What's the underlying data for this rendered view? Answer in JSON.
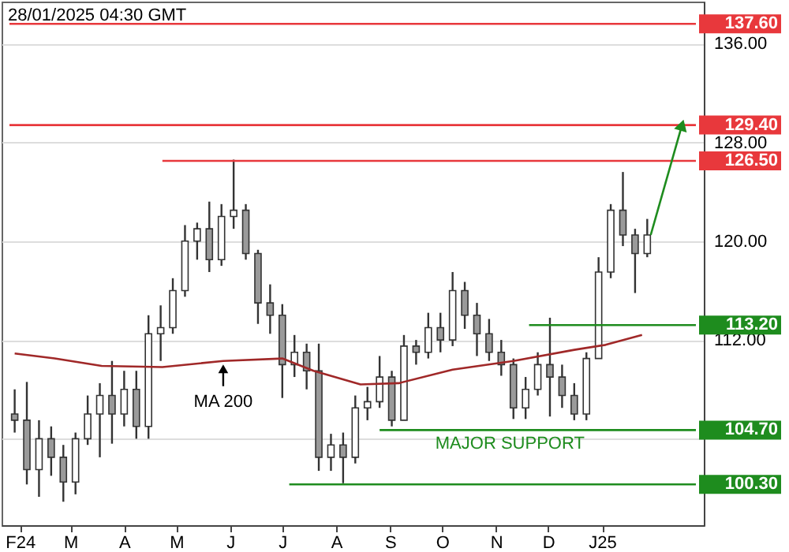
{
  "chart_data": {
    "type": "candlestick",
    "annotations": [
      "28/01/2025 04:30 GMT",
      {
        "text": "MA 200",
        "x": "2024-05-28",
        "y": 110.3
      },
      {
        "text": "MAJOR SUPPORT",
        "x": "2024-11-09",
        "y": 104.7
      }
    ],
    "x": [
      "2024-01-29",
      "2024-02-05",
      "2024-02-12",
      "2024-02-19",
      "2024-02-26",
      "2024-03-04",
      "2024-03-11",
      "2024-03-18",
      "2024-03-25",
      "2024-04-01",
      "2024-04-08",
      "2024-04-15",
      "2024-04-22",
      "2024-04-29",
      "2024-05-06",
      "2024-05-13",
      "2024-05-20",
      "2024-05-27",
      "2024-06-03",
      "2024-06-10",
      "2024-06-17",
      "2024-06-24",
      "2024-07-01",
      "2024-07-08",
      "2024-07-15",
      "2024-07-22",
      "2024-07-29",
      "2024-08-05",
      "2024-08-12",
      "2024-08-19",
      "2024-08-26",
      "2024-09-02",
      "2024-09-09",
      "2024-09-16",
      "2024-09-23",
      "2024-09-30",
      "2024-10-07",
      "2024-10-14",
      "2024-10-21",
      "2024-10-28",
      "2024-11-04",
      "2024-11-11",
      "2024-11-18",
      "2024-11-25",
      "2024-12-02",
      "2024-12-09",
      "2024-12-16",
      "2024-12-23",
      "2024-12-30",
      "2025-01-06",
      "2025-01-13",
      "2025-01-20",
      "2025-01-27"
    ],
    "ohlc": [
      [
        106,
        108,
        104.5,
        105.5
      ],
      [
        105.5,
        108.6,
        100.3,
        101.5
      ],
      [
        101.5,
        105.5,
        99.3,
        104
      ],
      [
        104,
        105,
        101,
        102.5
      ],
      [
        102.5,
        103.5,
        98.9,
        100.5
      ],
      [
        100.5,
        104.5,
        99.5,
        104
      ],
      [
        104,
        107.5,
        103.5,
        106
      ],
      [
        106,
        108.5,
        102.5,
        107.5
      ],
      [
        107.5,
        110.3,
        103.6,
        106
      ],
      [
        106,
        109.5,
        105,
        108
      ],
      [
        108,
        109.5,
        104,
        105
      ],
      [
        105,
        114,
        104,
        112.5
      ],
      [
        112.5,
        114.8,
        110.3,
        113
      ],
      [
        113,
        117,
        112.5,
        116
      ],
      [
        116,
        121.3,
        115.5,
        120
      ],
      [
        120,
        121.5,
        118.5,
        121
      ],
      [
        121,
        123.2,
        117.5,
        118.5
      ],
      [
        118.5,
        123,
        118,
        122
      ],
      [
        122,
        126.6,
        121,
        122.5
      ],
      [
        122.5,
        123,
        118.5,
        119
      ],
      [
        119,
        119.3,
        113.3,
        115
      ],
      [
        115,
        116.5,
        112.5,
        114
      ],
      [
        114,
        114.9,
        107.3,
        110
      ],
      [
        110,
        112.4,
        109,
        111
      ],
      [
        111,
        111.7,
        108,
        109.5
      ],
      [
        109.5,
        111.7,
        101.4,
        102.5
      ],
      [
        102.5,
        104.4,
        101.4,
        103.5
      ],
      [
        103.5,
        104.5,
        100.4,
        102.5
      ],
      [
        102.5,
        107.5,
        102,
        106.5
      ],
      [
        106.5,
        108.2,
        105.5,
        107
      ],
      [
        107,
        110.7,
        106.5,
        109
      ],
      [
        109,
        109.5,
        105,
        105.5
      ],
      [
        105.5,
        112.4,
        105.5,
        111.5
      ],
      [
        111.5,
        112,
        110,
        111
      ],
      [
        111,
        114.2,
        110.5,
        113
      ],
      [
        113,
        114.2,
        111,
        112
      ],
      [
        112,
        117.5,
        111.5,
        116
      ],
      [
        116,
        116.7,
        112.9,
        114
      ],
      [
        114,
        115,
        110.7,
        112.5
      ],
      [
        112.5,
        113.7,
        110.3,
        111
      ],
      [
        111,
        112,
        109.1,
        110
      ],
      [
        110,
        110.5,
        105.6,
        106.5
      ],
      [
        106.5,
        109,
        105.6,
        108
      ],
      [
        108,
        111,
        107.5,
        110
      ],
      [
        110,
        113.8,
        105.8,
        109
      ],
      [
        109,
        110,
        106.5,
        107.5
      ],
      [
        107.5,
        108.5,
        105.5,
        106
      ],
      [
        106,
        111,
        105.5,
        110.5
      ],
      [
        110.5,
        118.7,
        110.5,
        117.5
      ],
      [
        117.5,
        123,
        117,
        122.5
      ],
      [
        122.5,
        125.6,
        119.6,
        120.5
      ],
      [
        120.5,
        121,
        115.8,
        119
      ],
      [
        119,
        121.8,
        118.7,
        120.5
      ]
    ],
    "color": "#333333",
    "series": [
      {
        "type": "line",
        "color": "#a02828",
        "x": [
          "2024-01-29",
          "2024-02-21",
          "2024-03-19",
          "2024-04-23",
          "2024-05-28",
          "2024-07-01",
          "2024-07-19",
          "2024-08-15",
          "2024-09-06",
          "2024-10-07",
          "2024-11-11",
          "2024-12-16",
          "2025-01-03",
          "2025-01-24"
        ],
        "values": [
          110.9,
          110.5,
          109.9,
          109.8,
          110.3,
          110.5,
          109.5,
          108.4,
          108.5,
          109.6,
          110.3,
          111.2,
          111.6,
          112.4
        ]
      },
      {
        "type": "line",
        "color": "#e8383c",
        "x": [
          "2024-01-26",
          "2025-02-24"
        ],
        "values": [
          137.6,
          137.6
        ],
        "value_labels": [
          null,
          "137.60"
        ]
      },
      {
        "type": "line",
        "color": "#e8383c",
        "x": [
          "2024-01-26",
          "2025-02-24"
        ],
        "values": [
          129.4,
          129.4
        ],
        "value_labels": [
          null,
          "129.40"
        ]
      },
      {
        "type": "line",
        "color": "#e8383c",
        "x": [
          "2024-04-23",
          "2025-02-24"
        ],
        "values": [
          126.5,
          126.5
        ],
        "value_labels": [
          null,
          "126.50"
        ]
      },
      {
        "type": "line",
        "color": "#1e8c1e",
        "x": [
          "2024-11-20",
          "2025-02-24"
        ],
        "values": [
          113.2,
          113.2
        ],
        "value_labels": [
          null,
          "113.20"
        ]
      },
      {
        "type": "line",
        "color": "#1e8c1e",
        "x": [
          "2024-08-26",
          "2025-02-24"
        ],
        "values": [
          104.7,
          104.7
        ],
        "value_labels": [
          null,
          "104.70"
        ]
      },
      {
        "type": "line",
        "color": "#1e8c1e",
        "x": [
          "2024-07-05",
          "2025-02-24"
        ],
        "values": [
          100.3,
          100.3
        ],
        "value_labels": [
          null,
          "100.30"
        ]
      },
      {
        "type": "line",
        "color": "#1e8c1e",
        "x": [
          "2025-01-29",
          "2025-02-16"
        ],
        "values": [
          120.5,
          129.4
        ],
        "marker": "triangle"
      }
    ],
    "xlim": [
      "2024-01-26",
      "2025-02-24"
    ],
    "xticks": [
      {
        "value": "2024-02-01",
        "label": "F24"
      },
      {
        "value": "2024-03-01",
        "label": "M"
      },
      {
        "value": "2024-04-01",
        "label": "A"
      },
      {
        "value": "2024-05-01",
        "label": "M"
      },
      {
        "value": "2024-06-01",
        "label": "J"
      },
      {
        "value": "2024-07-01",
        "label": "J"
      },
      {
        "value": "2024-08-01",
        "label": "A"
      },
      {
        "value": "2024-09-01",
        "label": "S"
      },
      {
        "value": "2024-10-01",
        "label": "O"
      },
      {
        "value": "2024-11-01",
        "label": "N"
      },
      {
        "value": "2024-12-01",
        "label": "D"
      },
      {
        "value": "2025-01-01",
        "label": "J25"
      }
    ],
    "ylim": [
      97,
      139.4
    ],
    "yticks": [
      {
        "value": 104,
        "label": null
      },
      {
        "value": 112,
        "label": "112.00"
      },
      {
        "value": 120,
        "label": "120.00"
      },
      {
        "value": 128,
        "label": "128.00"
      },
      {
        "value": 136,
        "label": "136.00"
      }
    ],
    "grid": "y"
  }
}
